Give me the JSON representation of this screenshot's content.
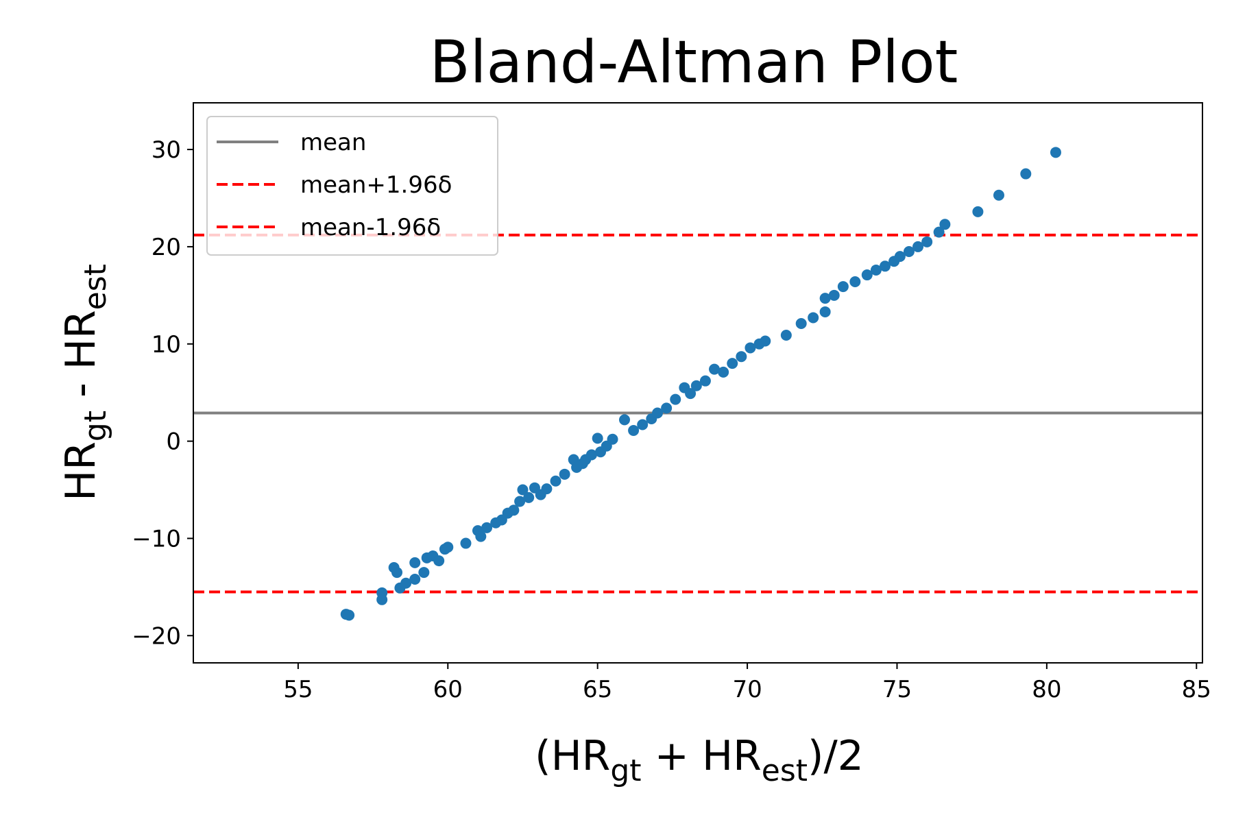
{
  "chart_data": {
    "type": "scatter",
    "title": "Bland-Altman Plot",
    "xlabel": {
      "base1": "(HR",
      "sub1": "gt",
      "mid": " + HR",
      "sub2": "est",
      "end": ")/2"
    },
    "ylabel": {
      "base1": "HR",
      "sub1": "gt",
      "mid": " - HR",
      "sub2": "est"
    },
    "xlim": [
      51.5,
      85.2
    ],
    "ylim": [
      -22.8,
      34.8
    ],
    "xticks": [
      55,
      60,
      65,
      70,
      75,
      80,
      85
    ],
    "yticks": [
      -20,
      -10,
      0,
      10,
      20,
      30
    ],
    "xtick_labels": [
      "55",
      "60",
      "65",
      "70",
      "75",
      "80",
      "85"
    ],
    "ytick_labels": [
      "−20",
      "−10",
      "0",
      "10",
      "20",
      "30"
    ],
    "grid": false,
    "legend_position": "top-left",
    "colors": {
      "points": "#1f77b4",
      "mean": "#808080",
      "limits": "#ff0000"
    },
    "reference_lines": [
      {
        "name": "mean",
        "y": 2.9,
        "style": "solid",
        "color": "#808080"
      },
      {
        "name": "mean+1.96δ",
        "y": 21.2,
        "style": "dashed",
        "color": "#ff0000"
      },
      {
        "name": "mean-1.96δ",
        "y": -15.5,
        "style": "dashed",
        "color": "#ff0000"
      }
    ],
    "series": [
      {
        "x": [
          56.6,
          56.7,
          57.8,
          57.8,
          58.2,
          58.3,
          58.4,
          58.6,
          58.9,
          58.9,
          59.2,
          59.3,
          59.5,
          59.7,
          59.9,
          60.0,
          60.6,
          61.0,
          61.1,
          61.3,
          61.6,
          61.8,
          62.0,
          62.2,
          62.4,
          62.5,
          62.7,
          62.9,
          63.1,
          63.3,
          63.6,
          63.9,
          64.2,
          64.3,
          64.5,
          64.6,
          64.8,
          65.0,
          65.1,
          65.3,
          65.5,
          65.9,
          66.2,
          66.5,
          66.8,
          67.0,
          67.3,
          67.6,
          67.9,
          68.1,
          68.3,
          68.6,
          68.9,
          69.2,
          69.5,
          69.8,
          70.1,
          70.4,
          70.6,
          71.3,
          71.8,
          72.2,
          72.6,
          72.6,
          72.9,
          73.2,
          73.6,
          74.0,
          74.3,
          74.6,
          74.9,
          75.1,
          75.4,
          75.7,
          76.0,
          76.4,
          76.6,
          77.7,
          78.4,
          79.3,
          80.3
        ],
        "y": [
          -17.8,
          -17.9,
          -16.3,
          -15.6,
          -13.0,
          -13.5,
          -15.1,
          -14.6,
          -12.5,
          -14.2,
          -13.5,
          -12.0,
          -11.8,
          -12.3,
          -11.1,
          -10.9,
          -10.5,
          -9.2,
          -9.8,
          -8.9,
          -8.4,
          -8.1,
          -7.4,
          -7.1,
          -6.2,
          -5.0,
          -5.8,
          -4.8,
          -5.5,
          -4.9,
          -4.1,
          -3.4,
          -1.9,
          -2.7,
          -2.3,
          -1.9,
          -1.4,
          0.3,
          -1.1,
          -0.5,
          0.2,
          2.2,
          1.1,
          1.7,
          2.3,
          2.9,
          3.4,
          4.3,
          5.5,
          4.9,
          5.7,
          6.2,
          7.4,
          7.1,
          8.0,
          8.7,
          9.6,
          10.0,
          10.3,
          10.9,
          12.1,
          12.7,
          13.3,
          14.7,
          15.0,
          15.9,
          16.4,
          17.1,
          17.6,
          18.0,
          18.5,
          19.0,
          19.5,
          20.0,
          20.5,
          21.5,
          22.3,
          23.6,
          25.3,
          27.5,
          29.7
        ]
      }
    ]
  }
}
